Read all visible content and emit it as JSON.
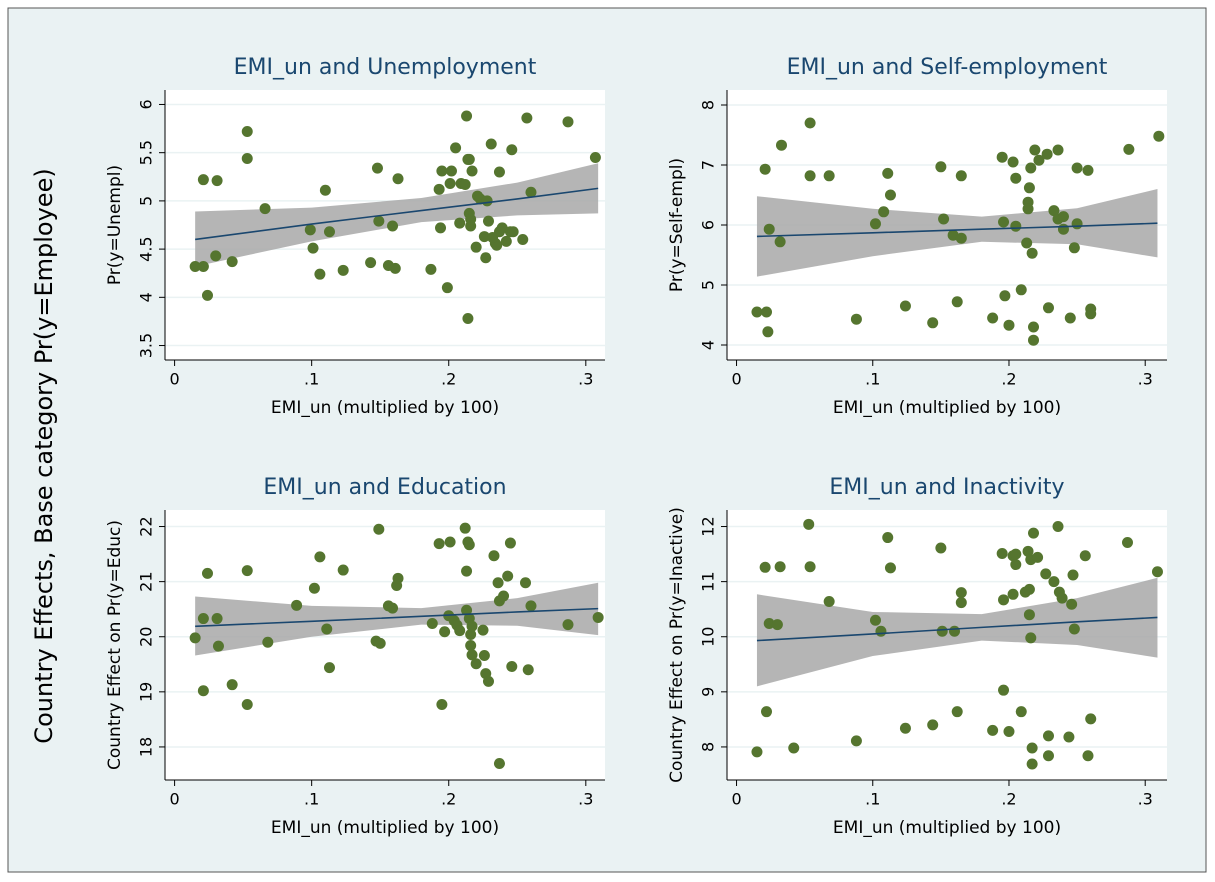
{
  "ytitle": "Country Effects, Base category Pr(y=Employee)",
  "chart_data": [
    {
      "type": "scatter",
      "title": "EMI_un and Unemployment",
      "xlabel": "EMI_un (multiplied by 100)",
      "ylabel": "Pr(y=Unempl)",
      "xlim": [
        -0.007,
        0.314
      ],
      "ylim": [
        3.35,
        6.15
      ],
      "xticks": [
        0,
        {
          "value": 0.1,
          "label": ".1"
        },
        {
          "value": 0.2,
          "label": ".2"
        },
        {
          "value": 0.3,
          "label": ".3"
        }
      ],
      "yticks": [
        3.5,
        4,
        4.5,
        5,
        5.5,
        6
      ],
      "grid": true,
      "color": "#55752f",
      "x": [
        0.015,
        0.021,
        0.021,
        0.031,
        0.024,
        0.03,
        0.042,
        0.053,
        0.053,
        0.066,
        0.099,
        0.101,
        0.11,
        0.113,
        0.123,
        0.106,
        0.143,
        0.148,
        0.149,
        0.156,
        0.159,
        0.161,
        0.163,
        0.187,
        0.193,
        0.194,
        0.199,
        0.195,
        0.202,
        0.201,
        0.205,
        0.208,
        0.209,
        0.212,
        0.213,
        0.214,
        0.215,
        0.215,
        0.216,
        0.216,
        0.217,
        0.22,
        0.221,
        0.223,
        0.227,
        0.226,
        0.229,
        0.228,
        0.231,
        0.234,
        0.235,
        0.237,
        0.237,
        0.239,
        0.242,
        0.245,
        0.246,
        0.247,
        0.254,
        0.257,
        0.26,
        0.287,
        0.307,
        0.214,
        0.232
      ],
      "values": [
        4.32,
        4.32,
        5.22,
        5.21,
        4.02,
        4.43,
        4.37,
        5.72,
        5.44,
        4.92,
        4.7,
        4.51,
        5.11,
        4.68,
        4.28,
        4.24,
        4.36,
        5.34,
        4.79,
        4.33,
        4.74,
        4.3,
        5.23,
        4.29,
        5.12,
        4.72,
        4.1,
        5.31,
        5.31,
        5.18,
        5.55,
        4.77,
        5.18,
        5.17,
        5.88,
        5.43,
        5.43,
        4.87,
        4.74,
        4.81,
        5.31,
        4.52,
        5.05,
        5.02,
        4.41,
        4.63,
        4.79,
        5.0,
        5.59,
        4.56,
        4.54,
        4.68,
        5.3,
        4.72,
        4.58,
        4.68,
        5.53,
        4.68,
        4.6,
        5.86,
        5.09,
        5.82,
        5.45,
        3.78,
        4.62
      ],
      "fit": {
        "color": "#1a476f",
        "band_color": "#a8a8a8",
        "x": [
          0.015,
          0.1,
          0.18,
          0.25,
          0.309
        ],
        "values": [
          4.6,
          4.76,
          4.9,
          5.02,
          5.13
        ],
        "ci_lower": [
          4.32,
          4.58,
          4.78,
          4.85,
          4.87
        ],
        "ci_upper": [
          4.89,
          4.93,
          5.03,
          5.19,
          5.39
        ]
      }
    },
    {
      "type": "scatter",
      "title": "EMI_un and Self-employment",
      "xlabel": "EMI_un (multiplied by 100)",
      "ylabel": "Pr(y=Self-empl)",
      "xlim": [
        -0.007,
        0.316
      ],
      "ylim": [
        3.75,
        8.25
      ],
      "xticks": [
        0,
        {
          "value": 0.1,
          "label": ".1"
        },
        {
          "value": 0.2,
          "label": ".2"
        },
        {
          "value": 0.3,
          "label": ".3"
        }
      ],
      "yticks": [
        4,
        5,
        6,
        7,
        8
      ],
      "grid": true,
      "color": "#55752f",
      "x": [
        0.015,
        0.022,
        0.021,
        0.024,
        0.032,
        0.033,
        0.023,
        0.054,
        0.054,
        0.068,
        0.088,
        0.102,
        0.108,
        0.111,
        0.113,
        0.124,
        0.144,
        0.15,
        0.152,
        0.159,
        0.162,
        0.165,
        0.165,
        0.188,
        0.195,
        0.196,
        0.197,
        0.2,
        0.203,
        0.205,
        0.205,
        0.209,
        0.213,
        0.214,
        0.214,
        0.215,
        0.216,
        0.217,
        0.218,
        0.218,
        0.219,
        0.222,
        0.228,
        0.229,
        0.233,
        0.236,
        0.236,
        0.24,
        0.24,
        0.245,
        0.248,
        0.25,
        0.25,
        0.258,
        0.26,
        0.26,
        0.288,
        0.31
      ],
      "values": [
        4.55,
        4.55,
        6.93,
        5.93,
        5.72,
        7.33,
        4.22,
        7.7,
        6.82,
        6.82,
        4.43,
        6.02,
        6.22,
        6.86,
        6.5,
        4.65,
        4.37,
        6.97,
        6.1,
        5.83,
        4.72,
        5.78,
        6.82,
        4.45,
        7.13,
        6.05,
        4.82,
        4.33,
        7.05,
        5.98,
        6.78,
        4.92,
        5.7,
        6.38,
        6.27,
        6.62,
        6.95,
        5.53,
        4.3,
        4.08,
        7.25,
        7.08,
        7.18,
        4.62,
        6.24,
        6.1,
        7.25,
        5.93,
        6.14,
        4.45,
        5.62,
        6.02,
        6.95,
        6.91,
        4.6,
        4.52,
        7.26,
        7.48
      ],
      "fit": {
        "color": "#1a476f",
        "band_color": "#a8a8a8",
        "x": [
          0.015,
          0.1,
          0.18,
          0.25,
          0.309
        ],
        "values": [
          5.81,
          5.87,
          5.93,
          5.98,
          6.03
        ],
        "ci_lower": [
          5.14,
          5.48,
          5.72,
          5.68,
          5.46
        ],
        "ci_upper": [
          6.48,
          6.27,
          6.14,
          6.28,
          6.6
        ]
      }
    },
    {
      "type": "scatter",
      "title": "EMI_un and Education",
      "xlabel": "EMI_un (multiplied by 100)",
      "ylabel": "Country Effect on Pr(y=Educ)",
      "xlim": [
        -0.007,
        0.314
      ],
      "ylim": [
        17.4,
        22.3
      ],
      "xticks": [
        0,
        {
          "value": 0.1,
          "label": ".1"
        },
        {
          "value": 0.2,
          "label": ".2"
        },
        {
          "value": 0.3,
          "label": ".3"
        }
      ],
      "yticks": [
        18,
        19,
        20,
        21,
        22
      ],
      "grid": true,
      "color": "#55752f",
      "x": [
        0.015,
        0.021,
        0.021,
        0.024,
        0.031,
        0.032,
        0.042,
        0.053,
        0.053,
        0.068,
        0.089,
        0.102,
        0.106,
        0.111,
        0.113,
        0.123,
        0.147,
        0.149,
        0.15,
        0.156,
        0.159,
        0.162,
        0.163,
        0.188,
        0.193,
        0.195,
        0.197,
        0.2,
        0.201,
        0.204,
        0.206,
        0.208,
        0.212,
        0.213,
        0.213,
        0.214,
        0.215,
        0.215,
        0.216,
        0.216,
        0.217,
        0.217,
        0.22,
        0.225,
        0.226,
        0.227,
        0.229,
        0.233,
        0.236,
        0.237,
        0.237,
        0.24,
        0.243,
        0.245,
        0.246,
        0.256,
        0.258,
        0.26,
        0.287,
        0.309
      ],
      "values": [
        19.98,
        20.33,
        19.02,
        21.15,
        20.33,
        19.83,
        19.13,
        21.2,
        18.77,
        19.9,
        20.57,
        20.88,
        21.45,
        20.14,
        19.44,
        21.21,
        19.92,
        21.95,
        19.88,
        20.56,
        20.52,
        20.93,
        21.06,
        20.24,
        21.69,
        18.77,
        20.09,
        20.38,
        21.72,
        20.29,
        20.21,
        20.11,
        21.97,
        21.19,
        20.48,
        21.72,
        21.67,
        20.33,
        20.04,
        19.84,
        20.19,
        19.67,
        19.51,
        20.12,
        19.66,
        19.33,
        19.19,
        21.47,
        20.98,
        17.7,
        20.65,
        20.74,
        21.1,
        21.7,
        19.46,
        20.98,
        19.4,
        20.56,
        20.22,
        20.35
      ],
      "fit": {
        "color": "#1a476f",
        "band_color": "#a8a8a8",
        "x": [
          0.015,
          0.1,
          0.18,
          0.25,
          0.309
        ],
        "values": [
          20.19,
          20.28,
          20.37,
          20.45,
          20.51
        ],
        "ci_lower": [
          19.66,
          20.0,
          20.22,
          20.2,
          20.03
        ],
        "ci_upper": [
          20.73,
          20.56,
          20.52,
          20.7,
          20.98
        ]
      }
    },
    {
      "type": "scatter",
      "title": "EMI_un and Inactivity",
      "xlabel": "EMI_un (multiplied by 100)",
      "ylabel": "Country Effect on Pr(y=Inactive)",
      "xlim": [
        -0.007,
        0.316
      ],
      "ylim": [
        7.4,
        12.3
      ],
      "xticks": [
        0,
        {
          "value": 0.1,
          "label": ".1"
        },
        {
          "value": 0.2,
          "label": ".2"
        },
        {
          "value": 0.3,
          "label": ".3"
        }
      ],
      "yticks": [
        8,
        9,
        10,
        11,
        12
      ],
      "grid": true,
      "color": "#55752f",
      "x": [
        0.015,
        0.022,
        0.021,
        0.024,
        0.03,
        0.032,
        0.042,
        0.053,
        0.054,
        0.068,
        0.088,
        0.102,
        0.106,
        0.111,
        0.113,
        0.124,
        0.144,
        0.15,
        0.151,
        0.16,
        0.162,
        0.165,
        0.165,
        0.188,
        0.195,
        0.196,
        0.196,
        0.2,
        0.203,
        0.203,
        0.205,
        0.205,
        0.209,
        0.212,
        0.214,
        0.215,
        0.215,
        0.216,
        0.216,
        0.217,
        0.217,
        0.218,
        0.221,
        0.227,
        0.229,
        0.229,
        0.233,
        0.236,
        0.237,
        0.239,
        0.244,
        0.246,
        0.247,
        0.248,
        0.256,
        0.258,
        0.26,
        0.287,
        0.309
      ],
      "values": [
        7.91,
        8.64,
        11.26,
        10.24,
        10.22,
        11.27,
        7.98,
        12.04,
        11.27,
        10.64,
        8.11,
        10.3,
        10.1,
        11.8,
        11.25,
        8.34,
        8.4,
        11.61,
        10.1,
        10.1,
        8.64,
        10.8,
        10.62,
        8.3,
        11.51,
        9.03,
        10.67,
        8.28,
        10.77,
        11.47,
        11.31,
        11.5,
        8.64,
        10.81,
        11.55,
        10.4,
        10.86,
        11.4,
        9.98,
        7.98,
        7.69,
        11.88,
        11.44,
        11.14,
        7.84,
        8.2,
        11.0,
        12.0,
        10.81,
        10.7,
        8.18,
        10.59,
        11.12,
        10.14,
        11.47,
        7.84,
        8.51,
        11.71,
        11.18
      ],
      "fit": {
        "color": "#1a476f",
        "band_color": "#a8a8a8",
        "x": [
          0.015,
          0.1,
          0.18,
          0.25,
          0.309
        ],
        "values": [
          9.93,
          10.05,
          10.17,
          10.27,
          10.35
        ],
        "ci_lower": [
          9.1,
          9.65,
          9.93,
          9.85,
          9.62
        ],
        "ci_upper": [
          10.77,
          10.45,
          10.41,
          10.7,
          11.07
        ]
      }
    }
  ]
}
